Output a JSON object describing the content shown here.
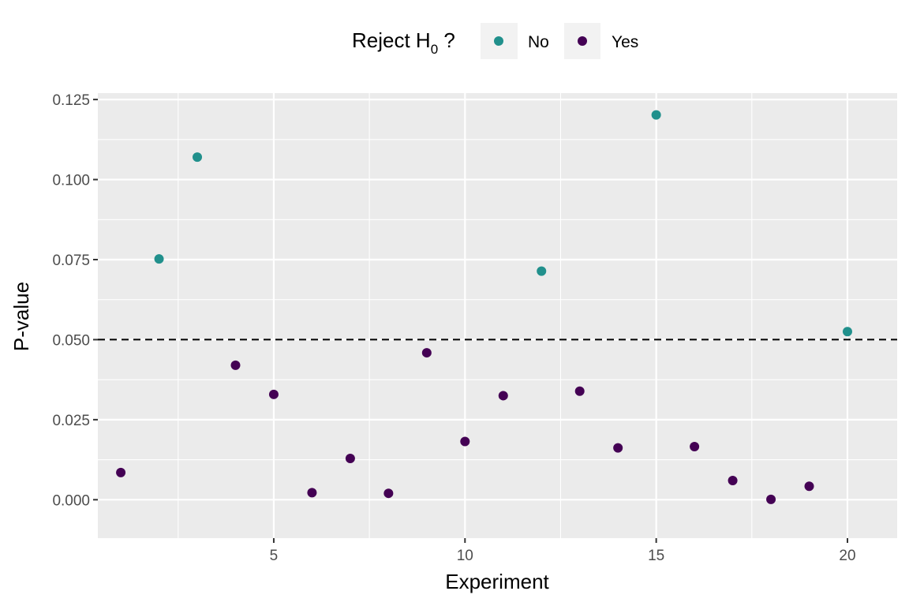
{
  "chart_data": {
    "type": "scatter",
    "xlabel": "Experiment",
    "ylabel": "P-value",
    "xlim": [
      0.4,
      21.3
    ],
    "ylim": [
      -0.012,
      0.127
    ],
    "x_ticks": [
      5,
      10,
      15,
      20
    ],
    "x_tick_labels": [
      "5",
      "10",
      "15",
      "20"
    ],
    "y_ticks": [
      0,
      0.025,
      0.05,
      0.075,
      0.1,
      0.125
    ],
    "y_tick_labels": [
      "0.000",
      "0.025",
      "0.050",
      "0.075",
      "0.100",
      "0.125"
    ],
    "grid": true,
    "legend_position": "top",
    "legend": {
      "title_main": "Reject H",
      "title_sub": "0",
      "title_tail": " ?"
    },
    "reference_line": {
      "y": 0.05,
      "style": "dashed"
    },
    "series": [
      {
        "name": "No",
        "color": "#21908c",
        "points": [
          {
            "x": 2,
            "y": 0.0752
          },
          {
            "x": 3,
            "y": 0.107
          },
          {
            "x": 12,
            "y": 0.0714
          },
          {
            "x": 15,
            "y": 0.1202
          },
          {
            "x": 20,
            "y": 0.0525
          }
        ]
      },
      {
        "name": "Yes",
        "color": "#440154",
        "points": [
          {
            "x": 1,
            "y": 0.0085
          },
          {
            "x": 4,
            "y": 0.042
          },
          {
            "x": 5,
            "y": 0.0329
          },
          {
            "x": 6,
            "y": 0.0022
          },
          {
            "x": 7,
            "y": 0.0129
          },
          {
            "x": 8,
            "y": 0.002
          },
          {
            "x": 9,
            "y": 0.0459
          },
          {
            "x": 10,
            "y": 0.0182
          },
          {
            "x": 11,
            "y": 0.0325
          },
          {
            "x": 13,
            "y": 0.0339
          },
          {
            "x": 14,
            "y": 0.0162
          },
          {
            "x": 16,
            "y": 0.0166
          },
          {
            "x": 17,
            "y": 0.006
          },
          {
            "x": 18,
            "y": 0.0001
          },
          {
            "x": 19,
            "y": 0.0042
          }
        ]
      }
    ]
  }
}
